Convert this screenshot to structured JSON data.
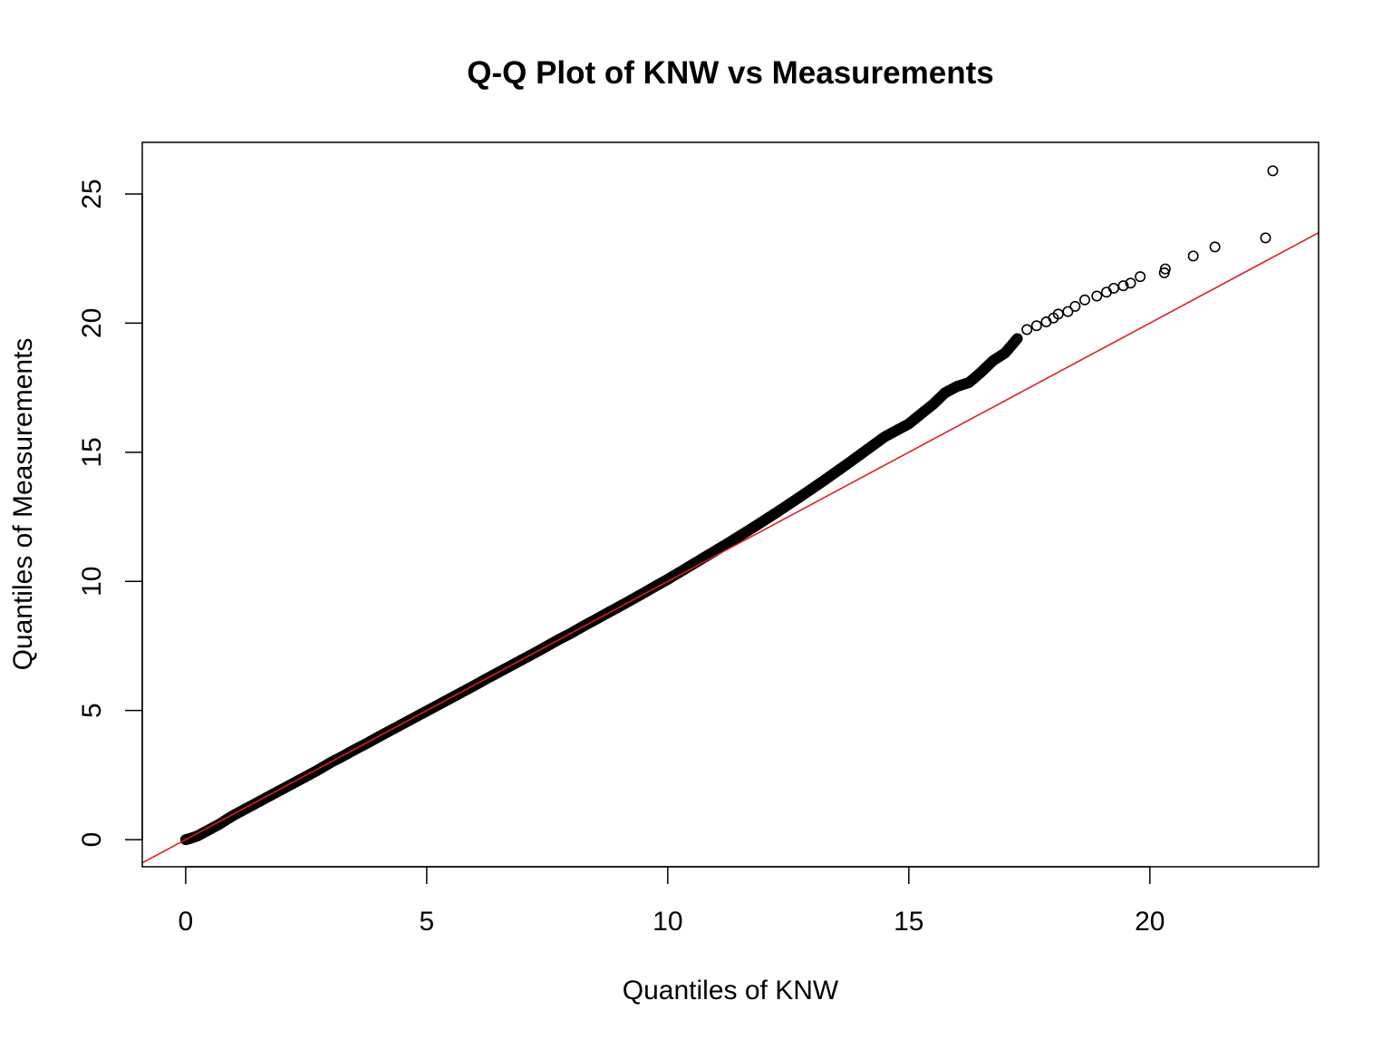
{
  "chart_data": {
    "type": "scatter",
    "title": "Q-Q Plot of KNW vs Measurements",
    "xlabel": "Quantiles of KNW",
    "ylabel": "Quantiles of Measurements",
    "xlim": [
      -0.9,
      23.5
    ],
    "ylim": [
      -1.05,
      27.0
    ],
    "x_ticks": [
      0,
      5,
      10,
      15,
      20
    ],
    "y_ticks": [
      0,
      5,
      10,
      15,
      20,
      25
    ],
    "grid": false,
    "legend": "none",
    "colors": {
      "points": "#000000",
      "reference_line": "#e31a1c",
      "axes": "#000000",
      "background": "#ffffff"
    },
    "reference_line": {
      "intercept": 0,
      "slope": 1
    },
    "series": [
      {
        "values": [
          [
            0.0,
            0.0
          ],
          [
            0.1,
            0.05
          ],
          [
            0.25,
            0.15
          ],
          [
            0.4,
            0.3
          ],
          [
            0.55,
            0.45
          ],
          [
            0.7,
            0.6
          ],
          [
            0.85,
            0.78
          ],
          [
            1.0,
            0.95
          ],
          [
            1.2,
            1.15
          ],
          [
            1.4,
            1.35
          ],
          [
            1.6,
            1.55
          ],
          [
            1.8,
            1.75
          ],
          [
            2.0,
            1.95
          ],
          [
            2.25,
            2.2
          ],
          [
            2.5,
            2.45
          ],
          [
            2.75,
            2.7
          ],
          [
            3.0,
            2.98
          ],
          [
            3.25,
            3.22
          ],
          [
            3.5,
            3.48
          ],
          [
            3.75,
            3.72
          ],
          [
            4.0,
            3.98
          ],
          [
            4.25,
            4.23
          ],
          [
            4.5,
            4.48
          ],
          [
            4.75,
            4.73
          ],
          [
            5.0,
            4.98
          ],
          [
            5.25,
            5.23
          ],
          [
            5.5,
            5.48
          ],
          [
            5.75,
            5.73
          ],
          [
            6.0,
            5.98
          ],
          [
            6.25,
            6.24
          ],
          [
            6.5,
            6.49
          ],
          [
            6.75,
            6.74
          ],
          [
            7.0,
            6.99
          ],
          [
            7.25,
            7.24
          ],
          [
            7.5,
            7.5
          ],
          [
            7.75,
            7.76
          ],
          [
            8.0,
            8.0
          ],
          [
            8.25,
            8.27
          ],
          [
            8.5,
            8.52
          ],
          [
            8.75,
            8.78
          ],
          [
            9.0,
            9.03
          ],
          [
            9.25,
            9.29
          ],
          [
            9.5,
            9.55
          ],
          [
            9.75,
            9.82
          ],
          [
            10.0,
            10.08
          ],
          [
            10.25,
            10.36
          ],
          [
            10.5,
            10.64
          ],
          [
            10.75,
            10.92
          ],
          [
            11.0,
            11.2
          ],
          [
            11.25,
            11.48
          ],
          [
            11.5,
            11.77
          ],
          [
            11.75,
            12.06
          ],
          [
            12.0,
            12.36
          ],
          [
            12.25,
            12.66
          ],
          [
            12.5,
            12.97
          ],
          [
            12.75,
            13.28
          ],
          [
            13.0,
            13.6
          ],
          [
            13.25,
            13.92
          ],
          [
            13.5,
            14.25
          ],
          [
            13.75,
            14.58
          ],
          [
            14.0,
            14.92
          ],
          [
            14.25,
            15.26
          ],
          [
            14.5,
            15.6
          ],
          [
            14.75,
            15.85
          ],
          [
            15.0,
            16.1
          ],
          [
            15.25,
            16.48
          ],
          [
            15.5,
            16.85
          ],
          [
            15.75,
            17.3
          ],
          [
            16.0,
            17.55
          ],
          [
            16.25,
            17.7
          ],
          [
            16.5,
            18.1
          ],
          [
            16.75,
            18.55
          ],
          [
            17.0,
            18.85
          ],
          [
            17.25,
            19.4
          ],
          [
            17.45,
            19.75
          ],
          [
            17.65,
            19.9
          ],
          [
            17.85,
            20.05
          ],
          [
            18.0,
            20.2
          ],
          [
            18.1,
            20.35
          ],
          [
            18.3,
            20.45
          ],
          [
            18.45,
            20.65
          ],
          [
            18.65,
            20.9
          ],
          [
            18.9,
            21.05
          ],
          [
            19.1,
            21.2
          ],
          [
            19.25,
            21.35
          ],
          [
            19.45,
            21.45
          ],
          [
            19.6,
            21.55
          ],
          [
            19.8,
            21.8
          ],
          [
            20.3,
            21.95
          ],
          [
            20.32,
            22.1
          ],
          [
            20.9,
            22.6
          ],
          [
            21.35,
            22.95
          ],
          [
            22.4,
            23.3
          ],
          [
            22.55,
            25.9
          ]
        ]
      }
    ]
  }
}
